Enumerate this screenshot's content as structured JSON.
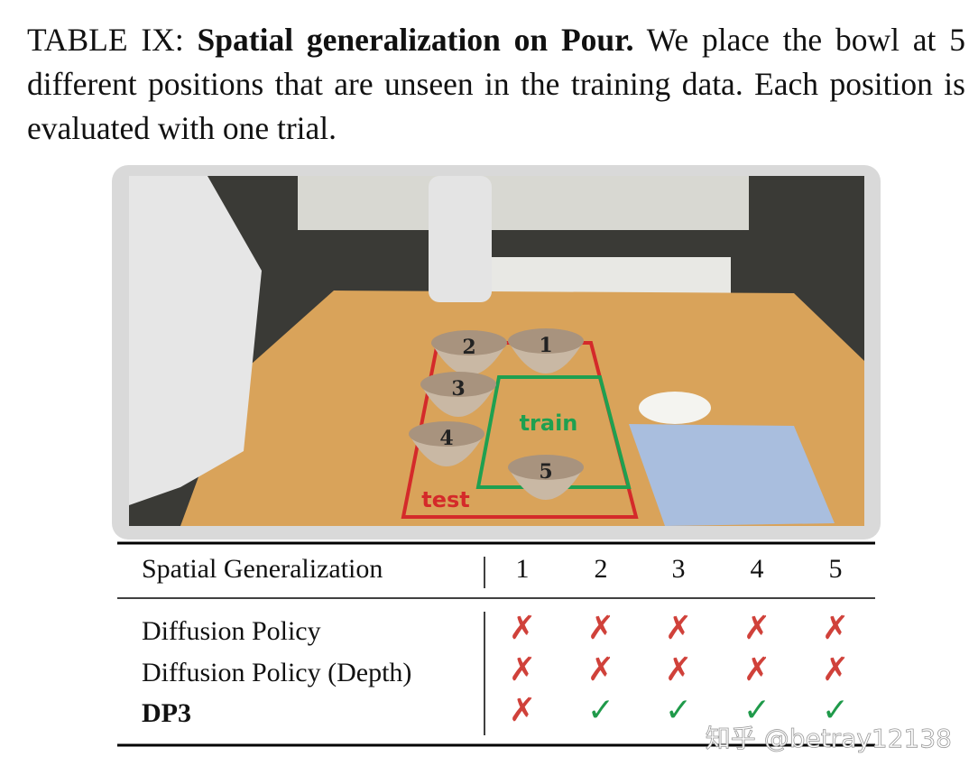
{
  "caption": {
    "label": "TABLE IX:",
    "bold": "Spatial generalization on Pour.",
    "text": "We place the bowl at 5 different positions that are unseen in the training data. Each position is evaluated with one trial."
  },
  "figure": {
    "bowls": [
      "1",
      "2",
      "3",
      "4",
      "5"
    ],
    "regions": [
      "train",
      "test"
    ]
  },
  "table": {
    "header": [
      "Spatial Generalization",
      "1",
      "2",
      "3",
      "4",
      "5"
    ],
    "rows": [
      [
        "Diffusion Policy",
        "✗",
        "✗",
        "✗",
        "✗",
        "✗"
      ],
      [
        "Diffusion Policy (Depth)",
        "✗",
        "✗",
        "✗",
        "✗",
        "✗"
      ],
      [
        "DP3",
        "✗",
        "✓",
        "✓",
        "✓",
        "✓"
      ]
    ]
  },
  "watermark": "知乎 @betray12138"
}
